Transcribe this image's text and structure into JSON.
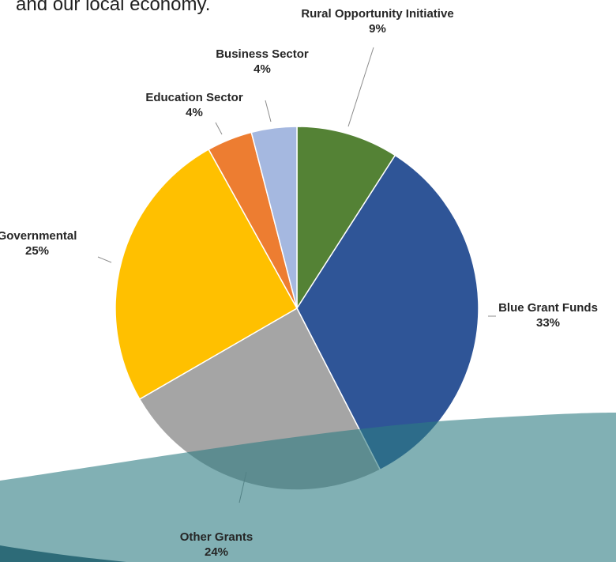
{
  "intro_text": "and our local economy.",
  "chart_data": {
    "type": "pie",
    "title": "",
    "slices": [
      {
        "label": "Rural Opportunity Initiative",
        "percent_label": "9%",
        "value": 9,
        "color": "#548235"
      },
      {
        "label": "Blue Grant Funds",
        "percent_label": "33%",
        "value": 33,
        "color": "#2f5597"
      },
      {
        "label": "Other Grants",
        "percent_label": "24%",
        "value": 24,
        "color": "#a5a5a5"
      },
      {
        "label": "Governmental",
        "percent_label": "25%",
        "value": 25,
        "color": "#ffc000"
      },
      {
        "label": "Education Sector",
        "percent_label": "4%",
        "value": 4,
        "color": "#ed7d31"
      },
      {
        "label": "Business Sector",
        "percent_label": "4%",
        "value": 4,
        "color": "#a5b8e0"
      }
    ],
    "start": "top",
    "direction": "clockwise",
    "legend": "none",
    "data_labels": "outside with leader lines"
  },
  "decoration": {
    "wave_color": "#2d7b82",
    "wave_opacity": 0.6
  }
}
